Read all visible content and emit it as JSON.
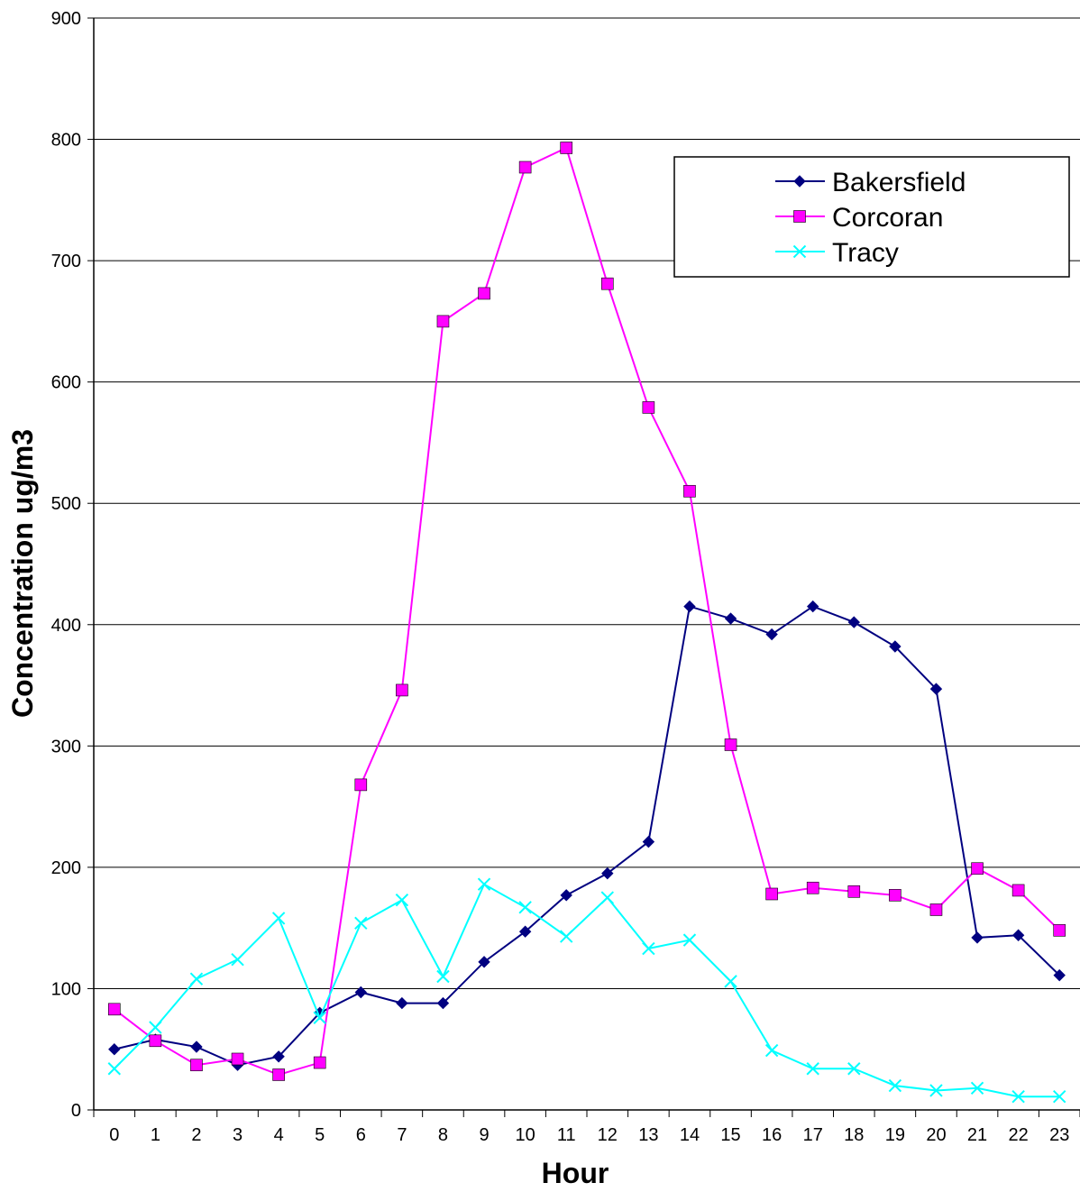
{
  "chart_data": {
    "type": "line",
    "title": "",
    "xlabel": "Hour",
    "ylabel": "Concentration ug/m3",
    "x": [
      0,
      1,
      2,
      3,
      4,
      5,
      6,
      7,
      8,
      9,
      10,
      11,
      12,
      13,
      14,
      15,
      16,
      17,
      18,
      19,
      20,
      21,
      22,
      23
    ],
    "xticks": [
      "0",
      "1",
      "2",
      "3",
      "4",
      "5",
      "6",
      "7",
      "8",
      "9",
      "10",
      "11",
      "12",
      "13",
      "14",
      "15",
      "16",
      "17",
      "18",
      "19",
      "20",
      "21",
      "22",
      "23"
    ],
    "ylim": [
      0,
      900
    ],
    "yticks": [
      "0",
      "100",
      "200",
      "300",
      "400",
      "500",
      "600",
      "700",
      "800",
      "900"
    ],
    "grid": "horizontal",
    "legend_position": "top-right",
    "series": [
      {
        "name": "Bakersfield",
        "color": "#000080",
        "marker": "diamond",
        "values": [
          50,
          58,
          52,
          37,
          44,
          80,
          97,
          88,
          88,
          122,
          147,
          177,
          195,
          221,
          415,
          405,
          392,
          415,
          402,
          382,
          347,
          142,
          144,
          111
        ]
      },
      {
        "name": "Corcoran",
        "color": "#FF00FF",
        "marker": "square",
        "values": [
          83,
          57,
          37,
          42,
          29,
          39,
          268,
          346,
          650,
          673,
          777,
          793,
          681,
          579,
          510,
          301,
          178,
          183,
          180,
          177,
          165,
          199,
          181,
          148
        ]
      },
      {
        "name": "Tracy",
        "color": "#00FFFF",
        "marker": "x",
        "values": [
          34,
          68,
          108,
          124,
          158,
          76,
          154,
          173,
          110,
          186,
          167,
          143,
          175,
          133,
          140,
          106,
          49,
          34,
          34,
          20,
          16,
          18,
          11,
          11
        ]
      }
    ]
  }
}
